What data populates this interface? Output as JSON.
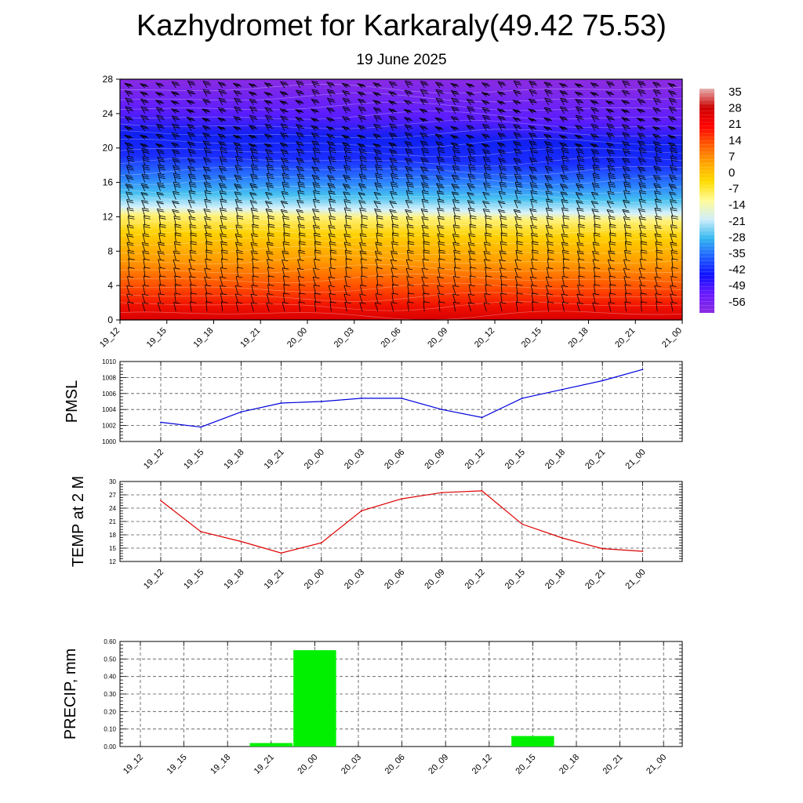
{
  "title": "Kazhydromet for Karkaraly(49.42 75.53)",
  "subtitle": "19 June 2025",
  "colors": {
    "pmsl_line": "#0000dd",
    "temp_line": "#dd0000",
    "precip_bar": "#00f000",
    "colorbar": [
      "#e6b0b0",
      "#cc0000",
      "#ff0000",
      "#ff5a00",
      "#ffa500",
      "#ffdd00",
      "#fffb9a",
      "#cfeefa",
      "#35b8f0",
      "#1e60ff",
      "#1010ff",
      "#6a1aff",
      "#8a2be2"
    ]
  },
  "chart_data": [
    {
      "type": "heatmap",
      "name": "vertical-profile",
      "x_ticks": [
        "19_12",
        "19_15",
        "19_18",
        "19_21",
        "20_00",
        "20_03",
        "20_06",
        "20_09",
        "20_12",
        "20_15",
        "20_18",
        "20_21",
        "21_00"
      ],
      "y_ticks": [
        0,
        4,
        8,
        12,
        16,
        20,
        24,
        28
      ],
      "ylim": [
        0,
        28
      ],
      "colorbar_labels": [
        "35",
        "28",
        "21",
        "14",
        "7",
        "0",
        "-7",
        "-14",
        "-21",
        "-28",
        "-35",
        "-42",
        "-49",
        "-56"
      ],
      "zlim": [
        -60,
        38
      ],
      "freezing_level": [
        12.6,
        12.6,
        12.5,
        12.5,
        12.4,
        12.3,
        12.3,
        12.2,
        12.1,
        12.0,
        12.0,
        11.9,
        11.9
      ],
      "overlay": "wind barbs"
    },
    {
      "type": "line",
      "name": "pmsl",
      "ylabel": "PMSL",
      "categories": [
        "19_12",
        "19_15",
        "19_18",
        "19_21",
        "20_00",
        "20_03",
        "20_06",
        "20_09",
        "20_12",
        "20_15",
        "20_18",
        "20_21",
        "21_00"
      ],
      "values": [
        1002.4,
        1001.8,
        1003.7,
        1004.8,
        1005.0,
        1005.4,
        1005.4,
        1004.0,
        1003.0,
        1005.4,
        1006.5,
        1007.6,
        1009.0
      ],
      "ylim": [
        1000,
        1010
      ],
      "y_ticks": [
        1000,
        1002,
        1004,
        1006,
        1008,
        1010
      ],
      "grid": true
    },
    {
      "type": "line",
      "name": "temp",
      "ylabel": "TEMP at 2 M",
      "categories": [
        "19_12",
        "19_15",
        "19_18",
        "19_21",
        "20_00",
        "20_03",
        "20_06",
        "20_09",
        "20_12",
        "20_15",
        "20_18",
        "20_21",
        "21_00"
      ],
      "values": [
        25.7,
        18.7,
        16.5,
        13.9,
        16.2,
        23.4,
        26.1,
        27.5,
        27.9,
        20.4,
        17.3,
        14.9,
        14.3
      ],
      "ylim": [
        12,
        30
      ],
      "y_ticks": [
        12,
        15,
        18,
        21,
        24,
        27,
        30
      ],
      "grid": true
    },
    {
      "type": "bar",
      "name": "precip",
      "ylabel": "PRECIP, mm",
      "categories": [
        "19_12",
        "19_15",
        "19_18",
        "19_21",
        "20_00",
        "20_03",
        "20_06",
        "20_09",
        "20_12",
        "20_15",
        "20_18",
        "20_21",
        "21_00"
      ],
      "values": [
        0,
        0,
        0,
        0.02,
        0.55,
        0,
        0,
        0,
        0,
        0.06,
        0,
        0,
        0
      ],
      "ylim": [
        0,
        0.6
      ],
      "y_ticks": [
        "0.00",
        "0.10",
        "0.20",
        "0.30",
        "0.40",
        "0.50",
        "0.60"
      ],
      "grid": true
    }
  ]
}
